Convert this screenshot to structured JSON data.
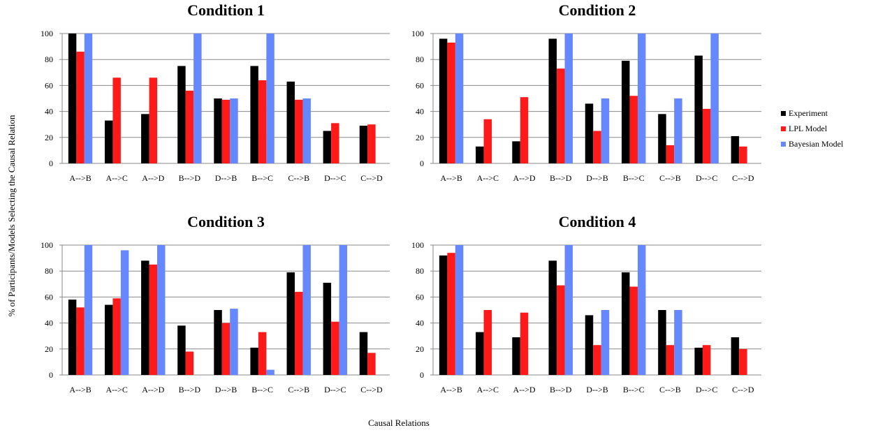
{
  "figure": {
    "ylabel": "% of Participants/Models Selecting the Causal Relation",
    "xlabel": "Causal Relations"
  },
  "legend": [
    {
      "name": "Experiment",
      "color": "#000000"
    },
    {
      "name": "LPL Model",
      "color": "#ff1a1a"
    },
    {
      "name": "Bayesian Model",
      "color": "#6688ff"
    }
  ],
  "chart_data": [
    {
      "type": "bar",
      "title": "Condition 1",
      "ylim": [
        0,
        100
      ],
      "yticks": [
        0,
        20,
        40,
        60,
        80,
        100
      ],
      "grid": true,
      "categories": [
        "A-->B",
        "A-->C",
        "A-->D",
        "B-->D",
        "D-->B",
        "B-->C",
        "C-->B",
        "D-->C",
        "C-->D"
      ],
      "series": [
        {
          "name": "Experiment",
          "values": [
            100,
            33,
            38,
            75,
            50,
            75,
            63,
            25,
            29
          ]
        },
        {
          "name": "LPL Model",
          "values": [
            86,
            66,
            66,
            56,
            49,
            64,
            49,
            31,
            30
          ]
        },
        {
          "name": "Bayesian Model",
          "values": [
            100,
            0,
            0,
            100,
            50,
            100,
            50,
            0,
            0
          ]
        }
      ]
    },
    {
      "type": "bar",
      "title": "Condition 2",
      "ylim": [
        0,
        100
      ],
      "yticks": [
        0,
        20,
        40,
        60,
        80,
        100
      ],
      "grid": true,
      "categories": [
        "A-->B",
        "A-->C",
        "A-->D",
        "B-->D",
        "D-->B",
        "B-->C",
        "C-->B",
        "D-->C",
        "C-->D"
      ],
      "series": [
        {
          "name": "Experiment",
          "values": [
            96,
            13,
            17,
            96,
            46,
            79,
            38,
            83,
            21
          ]
        },
        {
          "name": "LPL Model",
          "values": [
            93,
            34,
            51,
            73,
            25,
            52,
            14,
            42,
            13
          ]
        },
        {
          "name": "Bayesian Model",
          "values": [
            100,
            0,
            0,
            100,
            50,
            100,
            50,
            100,
            0
          ]
        }
      ]
    },
    {
      "type": "bar",
      "title": "Condition 3",
      "ylim": [
        0,
        100
      ],
      "yticks": [
        0,
        20,
        40,
        60,
        80,
        100
      ],
      "grid": true,
      "categories": [
        "A-->B",
        "A-->C",
        "A-->D",
        "B-->D",
        "D-->B",
        "B-->C",
        "C-->B",
        "D-->C",
        "C-->D"
      ],
      "series": [
        {
          "name": "Experiment",
          "values": [
            58,
            54,
            88,
            38,
            50,
            21,
            79,
            71,
            33
          ]
        },
        {
          "name": "LPL Model",
          "values": [
            52,
            59,
            85,
            18,
            40,
            33,
            64,
            41,
            17
          ]
        },
        {
          "name": "Bayesian Model",
          "values": [
            100,
            96,
            100,
            0,
            51,
            4,
            100,
            100,
            0
          ]
        }
      ]
    },
    {
      "type": "bar",
      "title": "Condition 4",
      "ylim": [
        0,
        100
      ],
      "yticks": [
        0,
        20,
        40,
        60,
        80,
        100
      ],
      "grid": true,
      "categories": [
        "A-->B",
        "A-->C",
        "A-->D",
        "B-->D",
        "D-->B",
        "B-->C",
        "C-->B",
        "D-->C",
        "C-->D"
      ],
      "series": [
        {
          "name": "Experiment",
          "values": [
            92,
            33,
            29,
            88,
            46,
            79,
            50,
            21,
            29
          ]
        },
        {
          "name": "LPL Model",
          "values": [
            94,
            50,
            48,
            69,
            23,
            68,
            23,
            23,
            20
          ]
        },
        {
          "name": "Bayesian Model",
          "values": [
            100,
            0,
            0,
            100,
            50,
            100,
            50,
            0,
            0
          ]
        }
      ]
    }
  ]
}
